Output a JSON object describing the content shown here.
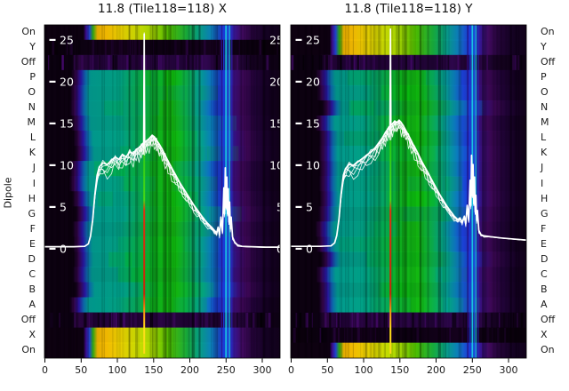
{
  "figure": {
    "titles": {
      "left": "11.8 (Tile118=118) X",
      "right": "11.8 (Tile118=118) Y"
    },
    "y_axis_label": "Dipole",
    "dipole_labels": [
      "On",
      "Y",
      "Off",
      "P",
      "O",
      "N",
      "M",
      "L",
      "K",
      "J",
      "I",
      "H",
      "G",
      "F",
      "E",
      "D",
      "C",
      "B",
      "A",
      "Off",
      "X",
      "On"
    ],
    "x_tick_labels": [
      "0",
      "50",
      "100",
      "150",
      "200",
      "250",
      "300"
    ]
  },
  "chart_data": {
    "type": "heatmap",
    "description": "Two-panel dipole spectrogram (waterfall) for Tile118, X and Y polarisations, with white overlaid per-dipole bandpass power traces and an inner dB-like scale 0-25.",
    "x_ticks": [
      0,
      50,
      100,
      150,
      200,
      250,
      300
    ],
    "x_range": [
      0,
      325
    ],
    "overlay_value_ticks": [
      25,
      20,
      15,
      10,
      5,
      0
    ],
    "row_categories": [
      "On",
      "Y",
      "Off",
      "P",
      "O",
      "N",
      "M",
      "L",
      "K",
      "J",
      "I",
      "H",
      "G",
      "F",
      "E",
      "D",
      "C",
      "B",
      "A",
      "Off",
      "X",
      "On"
    ],
    "panels": [
      {
        "title": "11.8 (Tile118=118) X",
        "pol": "X",
        "row_types": [
          "bright",
          "dark",
          "off",
          "green",
          "green",
          "green",
          "green",
          "green",
          "green",
          "green",
          "green",
          "green",
          "green",
          "green",
          "green",
          "green",
          "green",
          "green",
          "green",
          "off",
          "bright",
          "bright"
        ],
        "line": [
          [
            0,
            0.25
          ],
          [
            40,
            0.25
          ],
          [
            55,
            0.3
          ],
          [
            60,
            0.6
          ],
          [
            63,
            1.5
          ],
          [
            66,
            3.5
          ],
          [
            69,
            6.5
          ],
          [
            72,
            8.8
          ],
          [
            75,
            9.8
          ],
          [
            80,
            10.3
          ],
          [
            86,
            10.1
          ],
          [
            92,
            10.6
          ],
          [
            97,
            11.0
          ],
          [
            102,
            10.7
          ],
          [
            107,
            11.3
          ],
          [
            112,
            11.0
          ],
          [
            117,
            11.6
          ],
          [
            122,
            11.4
          ],
          [
            126,
            11.9
          ],
          [
            130,
            12.1
          ],
          [
            133,
            12.4
          ],
          [
            135,
            12.6
          ],
          [
            136.3,
            12.7
          ],
          [
            137,
            25.7
          ],
          [
            137.7,
            12.8
          ],
          [
            140,
            12.9
          ],
          [
            144,
            13.2
          ],
          [
            148,
            13.6
          ],
          [
            151,
            13.4
          ],
          [
            154,
            13.0
          ],
          [
            158,
            12.5
          ],
          [
            162,
            11.9
          ],
          [
            166,
            11.2
          ],
          [
            170,
            10.5
          ],
          [
            175,
            9.7
          ],
          [
            180,
            8.9
          ],
          [
            185,
            8.1
          ],
          [
            190,
            7.4
          ],
          [
            195,
            6.7
          ],
          [
            200,
            6.0
          ],
          [
            205,
            5.3
          ],
          [
            210,
            4.7
          ],
          [
            215,
            4.1
          ],
          [
            220,
            3.5
          ],
          [
            225,
            3.0
          ],
          [
            230,
            2.6
          ],
          [
            234,
            2.2
          ],
          [
            237,
            1.9
          ],
          [
            239,
            2.6
          ],
          [
            241,
            1.7
          ],
          [
            243,
            3.8
          ],
          [
            245,
            2.0
          ],
          [
            247,
            7.3
          ],
          [
            248,
            4.2
          ],
          [
            249,
            9.7
          ],
          [
            250,
            5.0
          ],
          [
            251,
            8.6
          ],
          [
            252,
            4.2
          ],
          [
            253,
            7.2
          ],
          [
            254,
            3.2
          ],
          [
            255,
            5.6
          ],
          [
            256,
            2.4
          ],
          [
            257,
            3.8
          ],
          [
            259,
            1.4
          ],
          [
            262,
            0.8
          ],
          [
            266,
            0.45
          ],
          [
            272,
            0.3
          ],
          [
            285,
            0.25
          ],
          [
            305,
            0.2
          ],
          [
            324,
            0.2
          ]
        ]
      },
      {
        "title": "11.8 (Tile118=118) Y",
        "pol": "Y",
        "row_types": [
          "bright",
          "bright",
          "off",
          "green",
          "green",
          "green",
          "green",
          "green",
          "green",
          "green",
          "green",
          "green",
          "green",
          "green",
          "green",
          "green",
          "green",
          "green",
          "green",
          "off",
          "dark",
          "bright"
        ],
        "line": [
          [
            0,
            0.3
          ],
          [
            40,
            0.3
          ],
          [
            55,
            0.35
          ],
          [
            60,
            0.7
          ],
          [
            63,
            1.6
          ],
          [
            66,
            3.6
          ],
          [
            69,
            6.6
          ],
          [
            72,
            8.8
          ],
          [
            75,
            9.6
          ],
          [
            80,
            10.1
          ],
          [
            86,
            10.0
          ],
          [
            92,
            10.4
          ],
          [
            98,
            10.8
          ],
          [
            104,
            11.2
          ],
          [
            110,
            11.6
          ],
          [
            116,
            12.1
          ],
          [
            121,
            12.7
          ],
          [
            126,
            13.3
          ],
          [
            130,
            13.9
          ],
          [
            133,
            14.3
          ],
          [
            135,
            14.6
          ],
          [
            136.3,
            14.7
          ],
          [
            137,
            26.3
          ],
          [
            137.7,
            14.8
          ],
          [
            140,
            15.0
          ],
          [
            143,
            15.3
          ],
          [
            146,
            15.1
          ],
          [
            149,
            15.4
          ],
          [
            152,
            15.1
          ],
          [
            155,
            14.7
          ],
          [
            158,
            14.2
          ],
          [
            162,
            13.6
          ],
          [
            166,
            12.9
          ],
          [
            170,
            12.2
          ],
          [
            175,
            11.4
          ],
          [
            180,
            10.5
          ],
          [
            185,
            9.7
          ],
          [
            190,
            8.9
          ],
          [
            195,
            8.1
          ],
          [
            200,
            7.3
          ],
          [
            205,
            6.5
          ],
          [
            210,
            5.8
          ],
          [
            215,
            5.1
          ],
          [
            220,
            4.5
          ],
          [
            225,
            3.9
          ],
          [
            230,
            3.5
          ],
          [
            233,
            3.7
          ],
          [
            236,
            3.2
          ],
          [
            239,
            3.9
          ],
          [
            241,
            3.0
          ],
          [
            243,
            5.2
          ],
          [
            245,
            3.4
          ],
          [
            247,
            8.2
          ],
          [
            248,
            5.2
          ],
          [
            249,
            11.2
          ],
          [
            250,
            6.4
          ],
          [
            251,
            10.1
          ],
          [
            252,
            5.4
          ],
          [
            253,
            8.6
          ],
          [
            254,
            4.4
          ],
          [
            255,
            6.4
          ],
          [
            256,
            3.4
          ],
          [
            257,
            4.6
          ],
          [
            259,
            2.2
          ],
          [
            262,
            1.7
          ],
          [
            266,
            1.55
          ],
          [
            275,
            1.45
          ],
          [
            290,
            1.3
          ],
          [
            310,
            1.15
          ],
          [
            324,
            1.05
          ]
        ]
      }
    ],
    "line_color": "#ffffff",
    "channel_marker": {
      "x": 137,
      "w": 2,
      "stops": [
        [
          0,
          "#28c818"
        ],
        [
          0.28,
          "#46d816"
        ],
        [
          0.33,
          "#e03010"
        ],
        [
          0.72,
          "#c82408"
        ],
        [
          0.8,
          "#ff9010"
        ],
        [
          0.88,
          "#ffe018"
        ],
        [
          1,
          "#ffd818"
        ]
      ]
    },
    "rfi_lines": [
      {
        "x": 244,
        "color": "#2a10a0",
        "w": 1.2,
        "opacity": 0.85
      },
      {
        "x": 247,
        "color": "#1b3ae0",
        "w": 1.6,
        "opacity": 0.9
      },
      {
        "x": 250,
        "color": "#19c8e8",
        "w": 1.8,
        "opacity": 0.95
      },
      {
        "x": 252.5,
        "color": "#1b50e8",
        "w": 1.4,
        "opacity": 0.9
      },
      {
        "x": 255,
        "color": "#18b4e0",
        "w": 1.6,
        "opacity": 0.9
      },
      {
        "x": 258,
        "color": "#2a28c0",
        "w": 1.2,
        "opacity": 0.8
      }
    ],
    "dark_columns": [
      {
        "x": 205,
        "w": 3,
        "opacity": 0.3
      },
      {
        "x": 213,
        "w": 2,
        "opacity": 0.18
      }
    ],
    "gradients": {
      "bright": [
        [
          0,
          "#0d0110"
        ],
        [
          0.175,
          "#0d0110"
        ],
        [
          0.185,
          "#3c0a8c"
        ],
        [
          0.2,
          "#2047d8"
        ],
        [
          0.215,
          "#2fae10"
        ],
        [
          0.233,
          "#f0b400"
        ],
        [
          0.27,
          "#ffc400"
        ],
        [
          0.33,
          "#f0d800"
        ],
        [
          0.42,
          "#c8e800"
        ],
        [
          0.47,
          "#a0dc00"
        ],
        [
          0.53,
          "#50c800"
        ],
        [
          0.6,
          "#18b43c"
        ],
        [
          0.65,
          "#06a886"
        ],
        [
          0.7,
          "#0b88c0"
        ],
        [
          0.74,
          "#1c4ce0"
        ],
        [
          0.77,
          "#2134cc"
        ],
        [
          0.8,
          "#3a1494"
        ],
        [
          0.83,
          "#440a64"
        ],
        [
          0.87,
          "#26043c"
        ],
        [
          0.93,
          "#150224"
        ],
        [
          1,
          "#100118"
        ]
      ],
      "green": [
        [
          0,
          "#0c0110"
        ],
        [
          0.13,
          "#0c0110"
        ],
        [
          0.15,
          "#33054a"
        ],
        [
          0.17,
          "#2815a0"
        ],
        [
          0.19,
          "#0b6aaa"
        ],
        [
          0.21,
          "#019a8e"
        ],
        [
          0.33,
          "#01a385"
        ],
        [
          0.4,
          "#07ab55"
        ],
        [
          0.47,
          "#0eb41e"
        ],
        [
          0.55,
          "#12ba10"
        ],
        [
          0.61,
          "#0ab050"
        ],
        [
          0.66,
          "#04a292"
        ],
        [
          0.7,
          "#0c7ac4"
        ],
        [
          0.735,
          "#1b43e0"
        ],
        [
          0.77,
          "#2230bc"
        ],
        [
          0.8,
          "#380e7c"
        ],
        [
          0.84,
          "#3d0756"
        ],
        [
          0.89,
          "#210338"
        ],
        [
          0.95,
          "#130120"
        ],
        [
          1,
          "#0e0114"
        ]
      ],
      "off": [
        [
          0,
          "#0a010e"
        ],
        [
          0.13,
          "#0c0112"
        ],
        [
          0.16,
          "#2b0542"
        ],
        [
          0.22,
          "#1c0230"
        ],
        [
          0.3,
          "#2a0544"
        ],
        [
          0.4,
          "#220336"
        ],
        [
          0.5,
          "#2c0648"
        ],
        [
          0.6,
          "#1e0332"
        ],
        [
          0.68,
          "#300750"
        ],
        [
          0.75,
          "#1a0228"
        ],
        [
          0.8,
          "#2c0648"
        ],
        [
          0.86,
          "#160222"
        ],
        [
          1,
          "#0b0110"
        ]
      ],
      "dark": [
        [
          0,
          "#090009"
        ],
        [
          0.15,
          "#0b0110"
        ],
        [
          0.3,
          "#120118"
        ],
        [
          0.5,
          "#0d0112"
        ],
        [
          0.7,
          "#14011c"
        ],
        [
          0.85,
          "#0c0110"
        ],
        [
          1,
          "#080009"
        ]
      ]
    }
  }
}
